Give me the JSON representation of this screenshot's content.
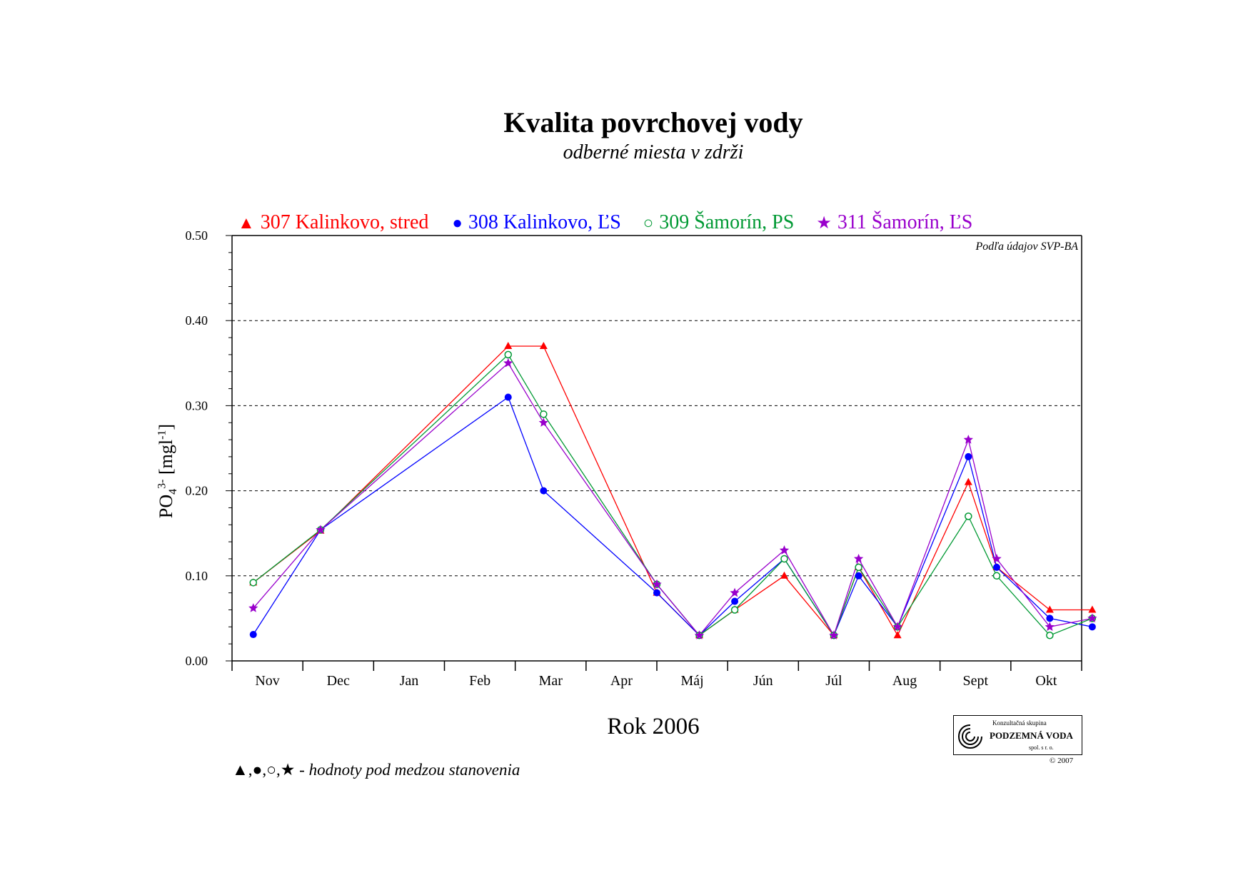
{
  "page": {
    "title": "Kvalita povrchovej vody",
    "subtitle": "odberné miesta v zdrži",
    "source_note": "Podľa údajov SVP-BA",
    "footnote_symbols": "▲,●,○,★",
    "footnote_text": " - hodnoty pod medzou stanovenia",
    "logo": {
      "top_text": "Konzultačná skupina",
      "name": "PODZEMNÁ VODA",
      "bottom_text": "spol. s r. o.",
      "copyright": "© 2007"
    }
  },
  "chart_data": {
    "type": "line",
    "title": "Kvalita povrchovej vody",
    "subtitle": "odberné miesta v zdrži",
    "xlabel": "Rok 2006",
    "ylabel": {
      "base": "PO",
      "sub": "4",
      "sup": "3-",
      "unit_pre": " [mgl",
      "unit_sup": "-1",
      "unit_post": "]"
    },
    "x_categories": [
      "Nov",
      "Dec",
      "Jan",
      "Feb",
      "Mar",
      "Apr",
      "Máj",
      "Jún",
      "Júl",
      "Aug",
      "Sept",
      "Okt"
    ],
    "x_range_months": [
      0,
      12
    ],
    "ylim": [
      0.0,
      0.5
    ],
    "yticks": [
      "0.00",
      "0.10",
      "0.20",
      "0.30",
      "0.40",
      "0.50"
    ],
    "ytick_values": [
      0.0,
      0.1,
      0.2,
      0.3,
      0.4,
      0.5
    ],
    "grid": "horizontal dashed at 0.10, 0.20, 0.30, 0.40",
    "legend_position": "top",
    "series": [
      {
        "name": "307 Kalinkovo, stred",
        "color": "#ff0000",
        "marker": "triangle",
        "legend_symbol": "▲",
        "x": [
          0.3,
          1.25,
          3.9,
          4.4,
          6.0,
          6.6,
          7.1,
          7.8,
          8.5,
          8.85,
          9.4,
          10.4,
          10.8,
          11.55,
          12.15
        ],
        "y": [
          0.092,
          0.153,
          0.37,
          0.37,
          0.08,
          0.03,
          0.06,
          0.1,
          0.03,
          0.11,
          0.03,
          0.21,
          0.11,
          0.06,
          0.06
        ]
      },
      {
        "name": "308 Kalinkovo, ĽS",
        "color": "#0000ff",
        "marker": "filled circle",
        "legend_symbol": "●",
        "x": [
          0.3,
          1.25,
          3.9,
          4.4,
          6.0,
          6.6,
          7.1,
          7.8,
          8.5,
          8.85,
          9.4,
          10.4,
          10.8,
          11.55,
          12.15
        ],
        "y": [
          0.031,
          0.154,
          0.31,
          0.2,
          0.08,
          0.03,
          0.07,
          0.12,
          0.03,
          0.1,
          0.04,
          0.24,
          0.11,
          0.05,
          0.04
        ]
      },
      {
        "name": "309 Šamorín, PS",
        "color": "#009933",
        "marker": "open circle",
        "legend_symbol": "○",
        "x": [
          0.3,
          1.25,
          3.9,
          4.4,
          6.0,
          6.6,
          7.1,
          7.8,
          8.5,
          8.85,
          9.4,
          10.4,
          10.8,
          11.55,
          12.15
        ],
        "y": [
          0.092,
          0.154,
          0.36,
          0.29,
          0.09,
          0.03,
          0.06,
          0.12,
          0.03,
          0.11,
          0.04,
          0.17,
          0.1,
          0.03,
          0.05
        ]
      },
      {
        "name": "311 Šamorín, ĽS",
        "color": "#9900cc",
        "marker": "star",
        "legend_symbol": "★",
        "x": [
          0.3,
          1.25,
          3.9,
          4.4,
          6.0,
          6.6,
          7.1,
          7.8,
          8.5,
          8.85,
          9.4,
          10.4,
          10.8,
          11.55,
          12.15
        ],
        "y": [
          0.062,
          0.154,
          0.35,
          0.28,
          0.09,
          0.03,
          0.08,
          0.13,
          0.03,
          0.12,
          0.04,
          0.26,
          0.12,
          0.04,
          0.05
        ]
      }
    ]
  }
}
